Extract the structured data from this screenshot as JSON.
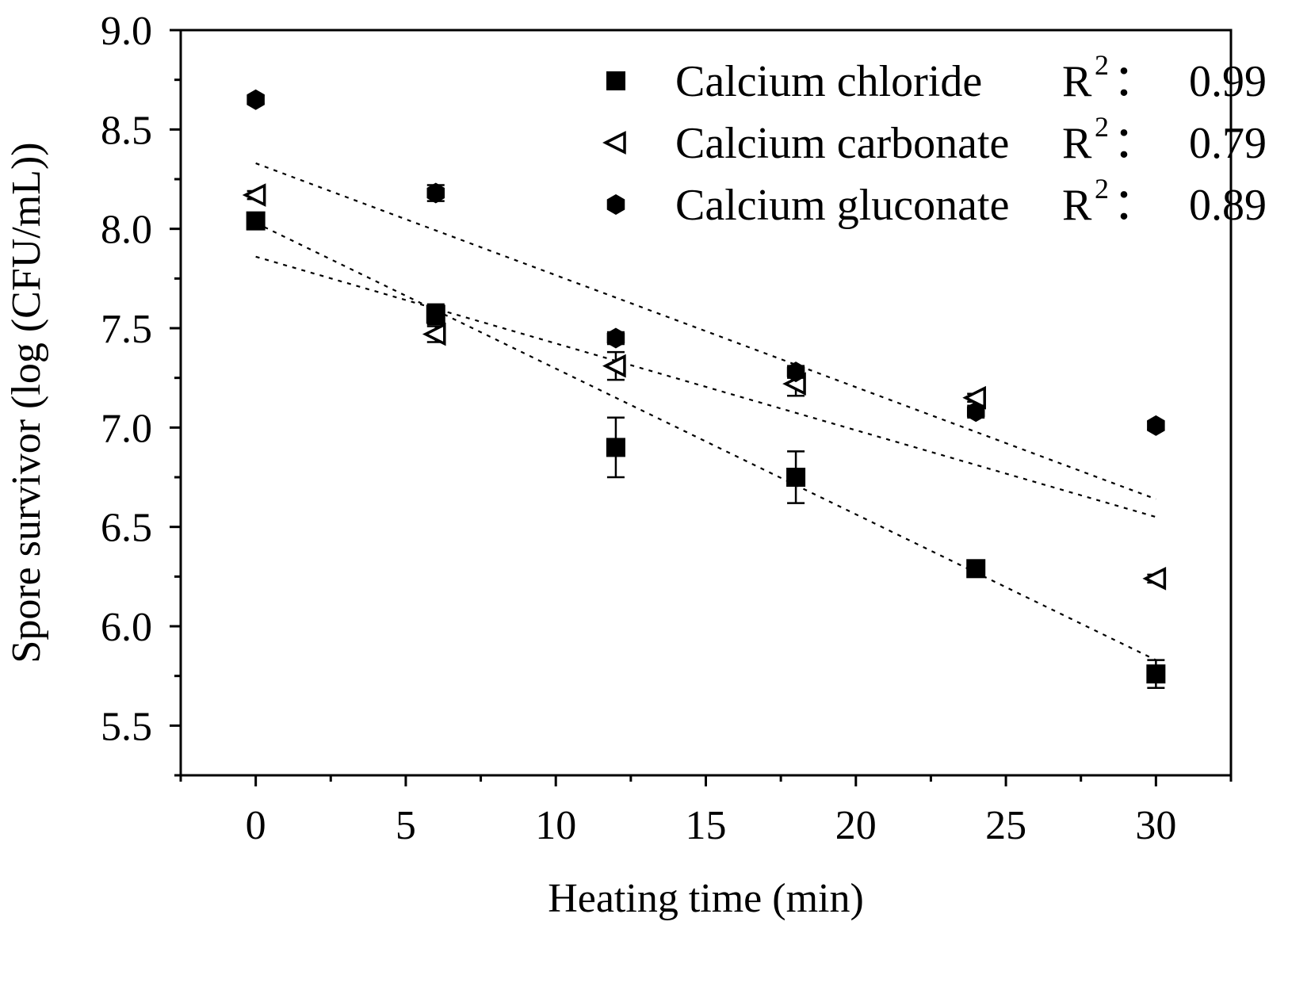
{
  "chart_data": {
    "type": "scatter",
    "title": "",
    "xlabel": "Heating time (min)",
    "ylabel": "Spore survivor (log (CFU/mL))",
    "xlim": [
      -2.5,
      32.5
    ],
    "ylim": [
      5.25,
      9.0
    ],
    "xticks": [
      "0",
      "5",
      "10",
      "15",
      "20",
      "25",
      "30"
    ],
    "yticks": [
      "5.5",
      "6.0",
      "6.5",
      "7.0",
      "7.5",
      "8.0",
      "8.5",
      "9.0"
    ],
    "legend_position": "top-right",
    "r2_label": "R",
    "r2_exponent": "2",
    "r2_separator": "：",
    "series": [
      {
        "name": "Calcium chloride",
        "marker": "square",
        "r2": "0.99",
        "x": [
          0,
          6,
          12,
          18,
          24,
          30
        ],
        "values": [
          8.04,
          7.57,
          6.9,
          6.75,
          6.29,
          5.76
        ],
        "errors": [
          0.03,
          0.05,
          0.15,
          0.13,
          0.03,
          0.07
        ],
        "fit": {
          "x0": 0,
          "x1": 30,
          "y0": 8.03,
          "y1": 5.83
        }
      },
      {
        "name": "Calcium carbonate",
        "marker": "open-triangle-left",
        "r2": "0.79",
        "x": [
          0,
          6,
          12,
          18,
          24,
          30
        ],
        "values": [
          8.17,
          7.47,
          7.31,
          7.22,
          7.15,
          6.24
        ],
        "errors": [
          0.02,
          0.04,
          0.07,
          0.06,
          0.02,
          0.02
        ],
        "fit": {
          "x0": 0,
          "x1": 30,
          "y0": 7.86,
          "y1": 6.55
        }
      },
      {
        "name": "Calcium gluconate",
        "marker": "hexagon",
        "r2": "0.89",
        "x": [
          0,
          6,
          12,
          18,
          24,
          30
        ],
        "values": [
          8.65,
          8.18,
          7.45,
          7.28,
          7.08,
          7.01
        ],
        "errors": [
          0.02,
          0.04,
          0.03,
          0.03,
          0.03,
          0.02
        ],
        "fit": {
          "x0": 0,
          "x1": 30,
          "y0": 8.33,
          "y1": 6.64
        }
      }
    ]
  }
}
